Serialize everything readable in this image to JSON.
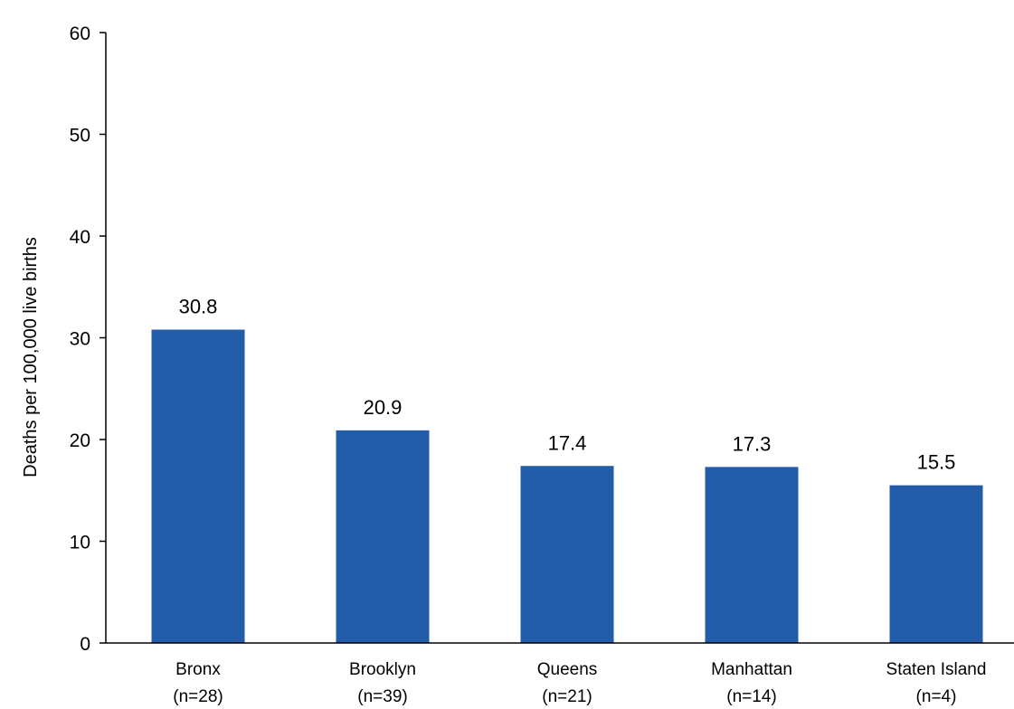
{
  "chart_data": {
    "type": "bar",
    "title": "",
    "xlabel": "",
    "ylabel": "Deaths per 100,000 live births",
    "ylim": [
      0,
      60
    ],
    "yticks": [
      0,
      10,
      20,
      30,
      40,
      50,
      60
    ],
    "grid": false,
    "legend": "none",
    "bar_color": "#235ca8",
    "categories": [
      {
        "name": "Bronx",
        "count": "(n=28)"
      },
      {
        "name": "Brooklyn",
        "count": "(n=39)"
      },
      {
        "name": "Queens",
        "count": "(n=21)"
      },
      {
        "name": "Manhattan",
        "count": "(n=14)"
      },
      {
        "name": "Staten Island",
        "count": "(n=4)"
      }
    ],
    "values": [
      30.8,
      20.9,
      17.4,
      17.3,
      15.5
    ],
    "value_labels": [
      "30.8",
      "20.9",
      "17.4",
      "17.3",
      "15.5"
    ]
  }
}
